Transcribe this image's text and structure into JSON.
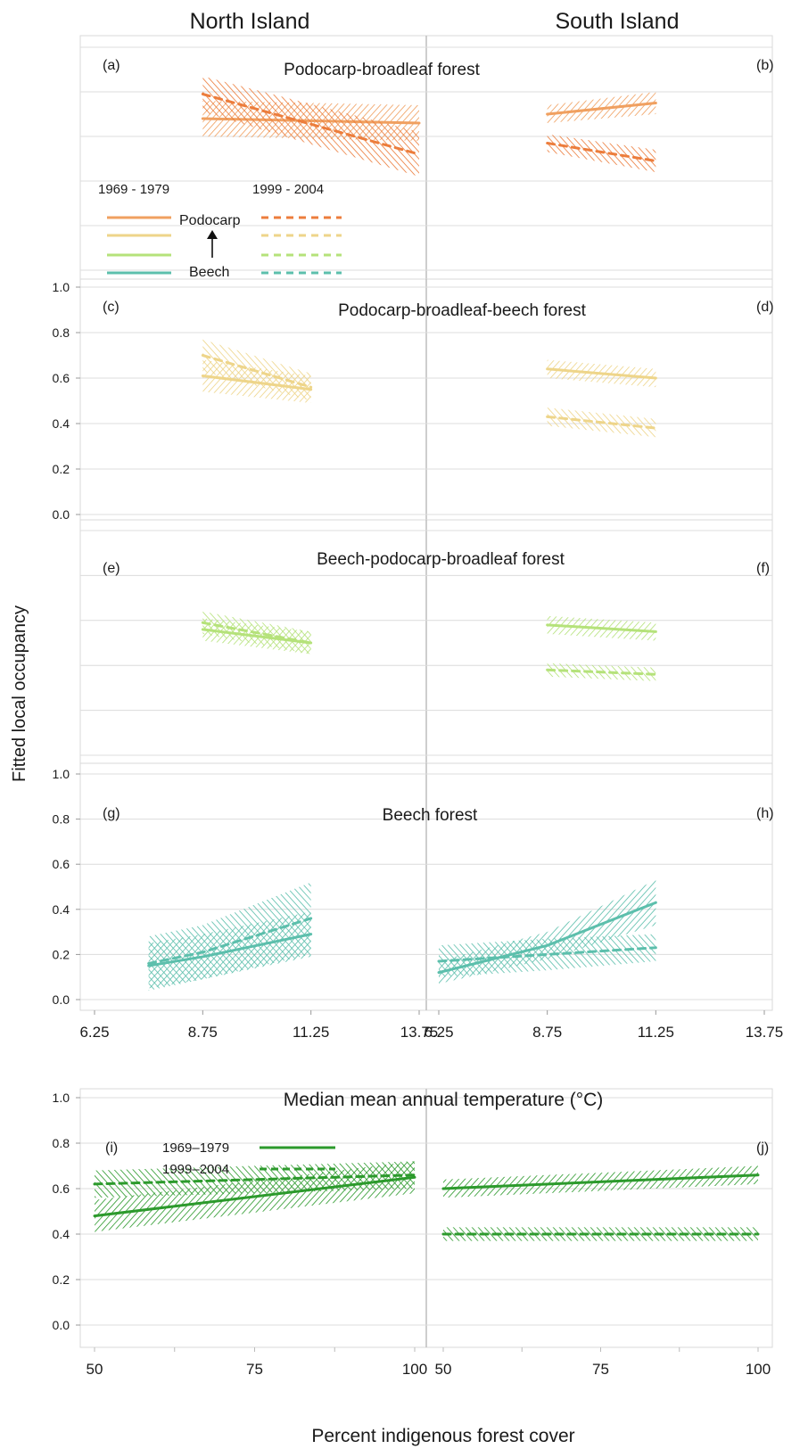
{
  "figure": {
    "col_north": "North Island",
    "col_south": "South Island",
    "ylabel": "Fitted local occupancy",
    "xlabel_temp": "Median mean annual temperature (°C)",
    "xlabel_cover": "Percent indigenous forest cover"
  },
  "legend_forest": {
    "period_early": "1969 - 1979",
    "period_late": "1999 - 2004",
    "podocarp": "Podocarp",
    "beech": "Beech"
  },
  "legend_cover": {
    "period_early": "1969–1979",
    "period_late": "1999–2004"
  },
  "colors": {
    "podocarp_broadleaf": "#f0a060",
    "podocarp_broadleaf_dashed": "#ec7d3c",
    "podocarp_broadleaf_beech": "#eed58a",
    "beech_podocarp_broadleaf": "#b5e27a",
    "beech": "#5cbfac",
    "cover": "#2c9a2c",
    "grid": "#dcdcdc",
    "divider": "#bdbdbd"
  },
  "chart_data": [
    {
      "type": "line",
      "panel": "(a)",
      "title": "Podocarp-broadleaf forest",
      "island": "North Island",
      "x_label": "Median mean annual temperature (°C)",
      "ylim": [
        0,
        1
      ],
      "series": [
        {
          "name": "1969 - 1979",
          "x": [
            8.75,
            13.75
          ],
          "y": [
            0.68,
            0.66
          ],
          "ci_halfwidth": [
            0.08,
            0.08
          ]
        },
        {
          "name": "1999 - 2004",
          "x": [
            8.75,
            13.75
          ],
          "y": [
            0.79,
            0.52
          ],
          "ci_halfwidth": [
            0.08,
            0.1
          ]
        }
      ]
    },
    {
      "type": "line",
      "panel": "(b)",
      "title": "",
      "island": "South Island",
      "ylim": [
        0,
        1
      ],
      "series": [
        {
          "name": "1969 - 1979",
          "x": [
            8.75,
            11.25
          ],
          "y": [
            0.7,
            0.75
          ],
          "ci_halfwidth": [
            0.04,
            0.05
          ]
        },
        {
          "name": "1999 - 2004",
          "x": [
            8.75,
            11.25
          ],
          "y": [
            0.57,
            0.49
          ],
          "ci_halfwidth": [
            0.04,
            0.05
          ]
        }
      ]
    },
    {
      "type": "line",
      "panel": "(c)",
      "title": "Podocarp-broadleaf-beech forest",
      "island": "North Island",
      "ylim": [
        0,
        1
      ],
      "yticks": [
        "0.0",
        "0.2",
        "0.4",
        "0.6",
        "0.8",
        "1.0"
      ],
      "series": [
        {
          "name": "1969 - 1979",
          "x": [
            8.75,
            11.25
          ],
          "y": [
            0.61,
            0.55
          ],
          "ci_halfwidth": [
            0.07,
            0.06
          ]
        },
        {
          "name": "1999 - 2004",
          "x": [
            8.75,
            11.25
          ],
          "y": [
            0.7,
            0.56
          ],
          "ci_halfwidth": [
            0.07,
            0.06
          ]
        }
      ]
    },
    {
      "type": "line",
      "panel": "(d)",
      "title": "",
      "island": "South Island",
      "ylim": [
        0,
        1
      ],
      "series": [
        {
          "name": "1969 - 1979",
          "x": [
            8.75,
            11.25
          ],
          "y": [
            0.64,
            0.6
          ],
          "ci_halfwidth": [
            0.04,
            0.04
          ]
        },
        {
          "name": "1999 - 2004",
          "x": [
            8.75,
            11.25
          ],
          "y": [
            0.43,
            0.38
          ],
          "ci_halfwidth": [
            0.04,
            0.04
          ]
        }
      ]
    },
    {
      "type": "line",
      "panel": "(e)",
      "title": "Beech-podocarp-broadleaf forest",
      "island": "North Island",
      "ylim": [
        0,
        1
      ],
      "series": [
        {
          "name": "1969 - 1979",
          "x": [
            8.75,
            11.25
          ],
          "y": [
            0.56,
            0.5
          ],
          "ci_halfwidth": [
            0.05,
            0.05
          ]
        },
        {
          "name": "1999 - 2004",
          "x": [
            8.75,
            11.25
          ],
          "y": [
            0.59,
            0.5
          ],
          "ci_halfwidth": [
            0.05,
            0.05
          ]
        }
      ]
    },
    {
      "type": "line",
      "panel": "(f)",
      "title": "",
      "island": "South Island",
      "ylim": [
        0,
        1
      ],
      "series": [
        {
          "name": "1969 - 1979",
          "x": [
            8.75,
            11.25
          ],
          "y": [
            0.58,
            0.55
          ],
          "ci_halfwidth": [
            0.04,
            0.04
          ]
        },
        {
          "name": "1999 - 2004",
          "x": [
            8.75,
            11.25
          ],
          "y": [
            0.38,
            0.36
          ],
          "ci_halfwidth": [
            0.03,
            0.03
          ]
        }
      ]
    },
    {
      "type": "line",
      "panel": "(g)",
      "title": "Beech forest",
      "island": "North Island",
      "xticks": [
        "6.25",
        "8.75",
        "11.25",
        "13.75"
      ],
      "ylim": [
        0,
        1
      ],
      "yticks": [
        "0.0",
        "0.2",
        "0.4",
        "0.6",
        "0.8",
        "1.0"
      ],
      "series": [
        {
          "name": "1969 - 1979",
          "x": [
            7.5,
            8.75,
            11.25
          ],
          "y": [
            0.15,
            0.19,
            0.29
          ],
          "ci_halfwidth": [
            0.1,
            0.1,
            0.1
          ]
        },
        {
          "name": "1999 - 2004",
          "x": [
            7.5,
            8.75,
            11.25
          ],
          "y": [
            0.16,
            0.21,
            0.36
          ],
          "ci_halfwidth": [
            0.12,
            0.12,
            0.16
          ]
        }
      ]
    },
    {
      "type": "line",
      "panel": "(h)",
      "title": "",
      "island": "South Island",
      "xticks": [
        "6.25",
        "8.75",
        "11.25",
        "13.75"
      ],
      "ylim": [
        0,
        1
      ],
      "series": [
        {
          "name": "1969 - 1979",
          "x": [
            6.25,
            8.75,
            11.25
          ],
          "y": [
            0.12,
            0.24,
            0.43
          ],
          "ci_halfwidth": [
            0.05,
            0.06,
            0.1
          ]
        },
        {
          "name": "1999 - 2004",
          "x": [
            6.25,
            8.75,
            11.25
          ],
          "y": [
            0.17,
            0.2,
            0.23
          ],
          "ci_halfwidth": [
            0.07,
            0.07,
            0.06
          ]
        }
      ]
    },
    {
      "type": "line",
      "panel": "(i)",
      "title": "",
      "island": "North Island",
      "x_label": "Percent indigenous forest cover",
      "xticks": [
        "50",
        "75",
        "100"
      ],
      "ylim": [
        0,
        1
      ],
      "yticks": [
        "0.0",
        "0.2",
        "0.4",
        "0.6",
        "0.8",
        "1.0"
      ],
      "series": [
        {
          "name": "1969–1979",
          "x": [
            50,
            100
          ],
          "y": [
            0.48,
            0.65
          ],
          "ci_halfwidth": [
            0.07,
            0.07
          ]
        },
        {
          "name": "1999–2004",
          "x": [
            50,
            100
          ],
          "y": [
            0.62,
            0.66
          ],
          "ci_halfwidth": [
            0.06,
            0.06
          ]
        }
      ]
    },
    {
      "type": "line",
      "panel": "(j)",
      "title": "",
      "island": "South Island",
      "xticks": [
        "50",
        "75",
        "100"
      ],
      "ylim": [
        0,
        1
      ],
      "series": [
        {
          "name": "1969–1979",
          "x": [
            50,
            100
          ],
          "y": [
            0.6,
            0.66
          ],
          "ci_halfwidth": [
            0.04,
            0.04
          ]
        },
        {
          "name": "1999–2004",
          "x": [
            50,
            100
          ],
          "y": [
            0.4,
            0.4
          ],
          "ci_halfwidth": [
            0.03,
            0.03
          ]
        }
      ]
    }
  ]
}
